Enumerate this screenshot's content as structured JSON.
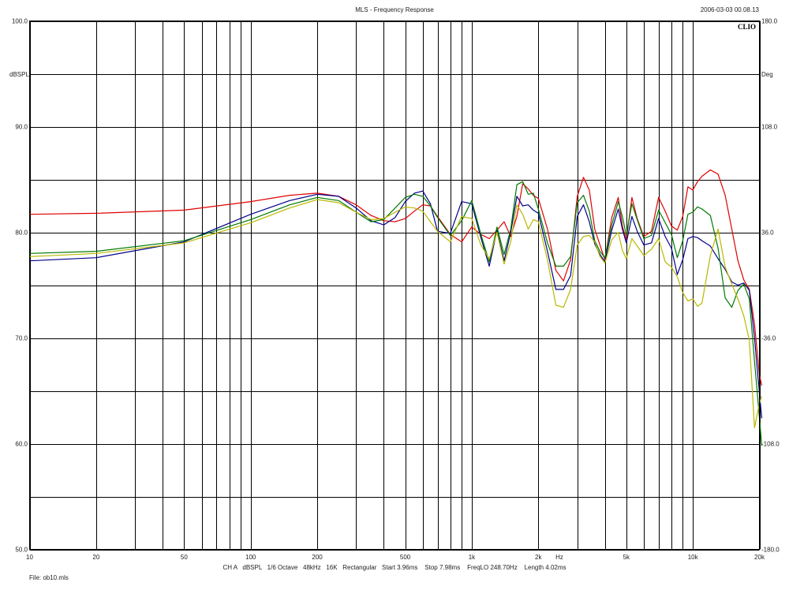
{
  "header": {
    "title": "MLS - Frequency Response",
    "datetime": "2006-03-03 00.08.13",
    "brand": "CLIO"
  },
  "footer": {
    "settings": "CH A   dBSPL   1/6 Octave   48kHz   16K   Rectangular   Start 3.96ms    Stop 7.98ms    FreqLO 248.70Hz    Length 4.02ms",
    "file": "File: ob10.mls"
  },
  "chart_data": {
    "type": "line",
    "xscale": "log",
    "xlim": [
      10,
      20000
    ],
    "ylim": [
      50,
      100
    ],
    "ylim_right": [
      -180,
      180
    ],
    "grid": true,
    "legend": "none",
    "ylabel": "dBSPL",
    "ylabel_right": "Deg",
    "xunit_label": "Hz",
    "x_ticks": [
      {
        "v": 10,
        "label": "10"
      },
      {
        "v": 20,
        "label": "20"
      },
      {
        "v": 50,
        "label": "50"
      },
      {
        "v": 100,
        "label": "100"
      },
      {
        "v": 200,
        "label": "200"
      },
      {
        "v": 500,
        "label": "500"
      },
      {
        "v": 1000,
        "label": "1k"
      },
      {
        "v": 2000,
        "label": "2k"
      },
      {
        "v": 5000,
        "label": "5k"
      },
      {
        "v": 10000,
        "label": "10k"
      },
      {
        "v": 20000,
        "label": "20k"
      }
    ],
    "x_grid": [
      10,
      20,
      30,
      40,
      50,
      60,
      70,
      80,
      90,
      100,
      200,
      300,
      400,
      500,
      600,
      700,
      800,
      900,
      1000,
      2000,
      3000,
      4000,
      5000,
      6000,
      7000,
      8000,
      9000,
      10000,
      20000
    ],
    "y_ticks_left": [
      {
        "v": 100,
        "label": "100.0"
      },
      {
        "v": 90,
        "label": "90.0"
      },
      {
        "v": 80,
        "label": "80.0"
      },
      {
        "v": 70,
        "label": "70.0"
      },
      {
        "v": 60,
        "label": "60.0"
      },
      {
        "v": 50,
        "label": "50.0"
      }
    ],
    "y_ticks_right": [
      {
        "v": 180,
        "label": "180.0"
      },
      {
        "v": 108,
        "label": "108.0"
      },
      {
        "v": 36,
        "label": "36.0"
      },
      {
        "v": -36,
        "label": "-36.0"
      },
      {
        "v": -108,
        "label": "-108.0"
      },
      {
        "v": -180,
        "label": "-180.0"
      }
    ],
    "y_grid": [
      100,
      95,
      90,
      85,
      80,
      75,
      70,
      65,
      60,
      55,
      50
    ],
    "series": [
      {
        "color": "#e00000",
        "points": [
          [
            10,
            81.7
          ],
          [
            20,
            81.8
          ],
          [
            50,
            82.1
          ],
          [
            100,
            82.9
          ],
          [
            150,
            83.5
          ],
          [
            200,
            83.7
          ],
          [
            250,
            83.4
          ],
          [
            300,
            82.6
          ],
          [
            350,
            81.6
          ],
          [
            400,
            81.1
          ],
          [
            450,
            81.0
          ],
          [
            500,
            81.3
          ],
          [
            550,
            82.0
          ],
          [
            600,
            82.6
          ],
          [
            650,
            82.5
          ],
          [
            700,
            81.5
          ],
          [
            800,
            79.8
          ],
          [
            900,
            79.1
          ],
          [
            1000,
            80.5
          ],
          [
            1100,
            79.8
          ],
          [
            1200,
            79.4
          ],
          [
            1300,
            80.2
          ],
          [
            1400,
            81.0
          ],
          [
            1500,
            79.6
          ],
          [
            1600,
            81.5
          ],
          [
            1700,
            84.6
          ],
          [
            1800,
            84.1
          ],
          [
            1900,
            83.5
          ],
          [
            2000,
            83.2
          ],
          [
            2200,
            80.3
          ],
          [
            2400,
            76.4
          ],
          [
            2600,
            75.4
          ],
          [
            2800,
            77.4
          ],
          [
            3000,
            83.4
          ],
          [
            3200,
            85.2
          ],
          [
            3400,
            84.0
          ],
          [
            3600,
            80.3
          ],
          [
            3800,
            78.8
          ],
          [
            4000,
            77.4
          ],
          [
            4300,
            81.4
          ],
          [
            4600,
            83.3
          ],
          [
            4800,
            80.6
          ],
          [
            5000,
            79.3
          ],
          [
            5300,
            83.3
          ],
          [
            5600,
            81.3
          ],
          [
            6000,
            79.6
          ],
          [
            6500,
            80.1
          ],
          [
            7000,
            83.3
          ],
          [
            7500,
            82.0
          ],
          [
            8000,
            80.6
          ],
          [
            8500,
            80.2
          ],
          [
            9000,
            81.5
          ],
          [
            9500,
            84.3
          ],
          [
            10000,
            84.0
          ],
          [
            10500,
            84.8
          ],
          [
            11000,
            85.3
          ],
          [
            12000,
            85.9
          ],
          [
            13000,
            85.5
          ],
          [
            14000,
            83.5
          ],
          [
            15000,
            80.3
          ],
          [
            16000,
            77.3
          ],
          [
            17000,
            75.5
          ],
          [
            18000,
            74.6
          ],
          [
            19000,
            71.3
          ],
          [
            20000,
            66.5
          ],
          [
            20500,
            65.5
          ]
        ]
      },
      {
        "color": "#00008a",
        "points": [
          [
            10,
            77.3
          ],
          [
            20,
            77.6
          ],
          [
            50,
            79.1
          ],
          [
            100,
            81.7
          ],
          [
            150,
            83.0
          ],
          [
            200,
            83.6
          ],
          [
            250,
            83.4
          ],
          [
            300,
            82.3
          ],
          [
            350,
            81.1
          ],
          [
            400,
            80.7
          ],
          [
            450,
            81.4
          ],
          [
            500,
            82.9
          ],
          [
            550,
            83.7
          ],
          [
            600,
            83.9
          ],
          [
            650,
            82.7
          ],
          [
            700,
            80.1
          ],
          [
            800,
            79.9
          ],
          [
            900,
            82.9
          ],
          [
            1000,
            82.7
          ],
          [
            1100,
            79.5
          ],
          [
            1200,
            76.8
          ],
          [
            1300,
            80.2
          ],
          [
            1400,
            77.3
          ],
          [
            1500,
            80.0
          ],
          [
            1600,
            83.4
          ],
          [
            1700,
            82.5
          ],
          [
            1800,
            82.6
          ],
          [
            1900,
            82.1
          ],
          [
            2000,
            81.8
          ],
          [
            2200,
            78.2
          ],
          [
            2400,
            74.6
          ],
          [
            2600,
            74.6
          ],
          [
            2800,
            75.9
          ],
          [
            3000,
            81.5
          ],
          [
            3200,
            82.6
          ],
          [
            3400,
            81.0
          ],
          [
            3600,
            78.9
          ],
          [
            3800,
            77.9
          ],
          [
            4000,
            77.2
          ],
          [
            4300,
            80.2
          ],
          [
            4600,
            82.2
          ],
          [
            4800,
            80.3
          ],
          [
            5000,
            79.0
          ],
          [
            5300,
            81.5
          ],
          [
            5600,
            80.1
          ],
          [
            6000,
            78.8
          ],
          [
            6500,
            79.0
          ],
          [
            7000,
            81.3
          ],
          [
            7500,
            79.6
          ],
          [
            8000,
            78.5
          ],
          [
            8500,
            76.0
          ],
          [
            9000,
            77.4
          ],
          [
            9500,
            79.4
          ],
          [
            10000,
            79.6
          ],
          [
            10500,
            79.5
          ],
          [
            11000,
            79.2
          ],
          [
            12000,
            78.7
          ],
          [
            13000,
            77.5
          ],
          [
            14000,
            76.5
          ],
          [
            15000,
            75.3
          ],
          [
            16000,
            75.0
          ],
          [
            17000,
            75.2
          ],
          [
            18000,
            74.5
          ],
          [
            19000,
            70.0
          ],
          [
            20000,
            64.8
          ],
          [
            20500,
            62.4
          ]
        ]
      },
      {
        "color": "#007a00",
        "points": [
          [
            10,
            78.0
          ],
          [
            20,
            78.2
          ],
          [
            50,
            79.2
          ],
          [
            100,
            81.2
          ],
          [
            150,
            82.6
          ],
          [
            200,
            83.3
          ],
          [
            250,
            83.0
          ],
          [
            300,
            81.9
          ],
          [
            350,
            81.0
          ],
          [
            400,
            81.2
          ],
          [
            450,
            82.3
          ],
          [
            500,
            83.3
          ],
          [
            550,
            83.6
          ],
          [
            600,
            83.4
          ],
          [
            650,
            82.5
          ],
          [
            700,
            81.4
          ],
          [
            800,
            79.7
          ],
          [
            900,
            81.1
          ],
          [
            1000,
            83.0
          ],
          [
            1100,
            79.8
          ],
          [
            1200,
            77.2
          ],
          [
            1300,
            80.5
          ],
          [
            1400,
            77.9
          ],
          [
            1500,
            80.3
          ],
          [
            1600,
            84.5
          ],
          [
            1700,
            84.8
          ],
          [
            1800,
            83.6
          ],
          [
            1900,
            83.7
          ],
          [
            2000,
            82.2
          ],
          [
            2200,
            79.0
          ],
          [
            2400,
            76.8
          ],
          [
            2600,
            76.8
          ],
          [
            2800,
            77.7
          ],
          [
            3000,
            82.8
          ],
          [
            3200,
            83.5
          ],
          [
            3400,
            82.0
          ],
          [
            3600,
            79.2
          ],
          [
            3800,
            78.2
          ],
          [
            4000,
            77.6
          ],
          [
            4300,
            80.7
          ],
          [
            4600,
            82.9
          ],
          [
            4800,
            81.5
          ],
          [
            5000,
            79.7
          ],
          [
            5300,
            82.7
          ],
          [
            5600,
            81.2
          ],
          [
            6000,
            79.4
          ],
          [
            6500,
            79.7
          ],
          [
            7000,
            82.1
          ],
          [
            7500,
            80.9
          ],
          [
            8000,
            79.8
          ],
          [
            8500,
            77.6
          ],
          [
            9000,
            79.2
          ],
          [
            9500,
            81.7
          ],
          [
            10000,
            81.9
          ],
          [
            10500,
            82.4
          ],
          [
            11000,
            82.2
          ],
          [
            12000,
            81.6
          ],
          [
            13000,
            78.5
          ],
          [
            14000,
            73.8
          ],
          [
            15000,
            72.9
          ],
          [
            16000,
            74.5
          ],
          [
            17000,
            75.1
          ],
          [
            18000,
            73.7
          ],
          [
            19000,
            67.8
          ],
          [
            20000,
            62.5
          ],
          [
            20500,
            59.8
          ]
        ]
      },
      {
        "color": "#b8b800",
        "points": [
          [
            10,
            77.7
          ],
          [
            20,
            78.0
          ],
          [
            50,
            79.0
          ],
          [
            100,
            80.9
          ],
          [
            150,
            82.3
          ],
          [
            200,
            83.1
          ],
          [
            250,
            82.8
          ],
          [
            300,
            81.9
          ],
          [
            350,
            81.2
          ],
          [
            400,
            81.3
          ],
          [
            450,
            81.9
          ],
          [
            500,
            82.4
          ],
          [
            550,
            82.3
          ],
          [
            600,
            82.0
          ],
          [
            650,
            81.0
          ],
          [
            700,
            80.1
          ],
          [
            800,
            79.1
          ],
          [
            900,
            81.5
          ],
          [
            1000,
            81.3
          ],
          [
            1100,
            78.8
          ],
          [
            1200,
            77.5
          ],
          [
            1300,
            80.0
          ],
          [
            1400,
            77.0
          ],
          [
            1500,
            79.1
          ],
          [
            1600,
            82.6
          ],
          [
            1700,
            81.7
          ],
          [
            1800,
            80.3
          ],
          [
            1900,
            81.2
          ],
          [
            2000,
            81.0
          ],
          [
            2200,
            77.4
          ],
          [
            2400,
            73.1
          ],
          [
            2600,
            72.9
          ],
          [
            2800,
            74.6
          ],
          [
            3000,
            78.8
          ],
          [
            3200,
            79.6
          ],
          [
            3400,
            79.7
          ],
          [
            3600,
            79.1
          ],
          [
            3800,
            77.7
          ],
          [
            4000,
            77.1
          ],
          [
            4300,
            79.3
          ],
          [
            4600,
            80.0
          ],
          [
            4800,
            78.3
          ],
          [
            5000,
            77.5
          ],
          [
            5300,
            79.4
          ],
          [
            5600,
            78.7
          ],
          [
            6000,
            77.8
          ],
          [
            6500,
            78.4
          ],
          [
            7000,
            79.4
          ],
          [
            7500,
            77.2
          ],
          [
            8000,
            76.7
          ],
          [
            8500,
            75.8
          ],
          [
            9000,
            74.3
          ],
          [
            9500,
            73.5
          ],
          [
            10000,
            73.7
          ],
          [
            10500,
            73.0
          ],
          [
            11000,
            73.3
          ],
          [
            12000,
            77.8
          ],
          [
            13000,
            80.3
          ],
          [
            14000,
            76.7
          ],
          [
            15000,
            75.1
          ],
          [
            16000,
            73.7
          ],
          [
            17000,
            72.1
          ],
          [
            18000,
            69.8
          ],
          [
            19000,
            61.5
          ],
          [
            20000,
            63.8
          ],
          [
            20500,
            64.5
          ]
        ]
      }
    ]
  }
}
